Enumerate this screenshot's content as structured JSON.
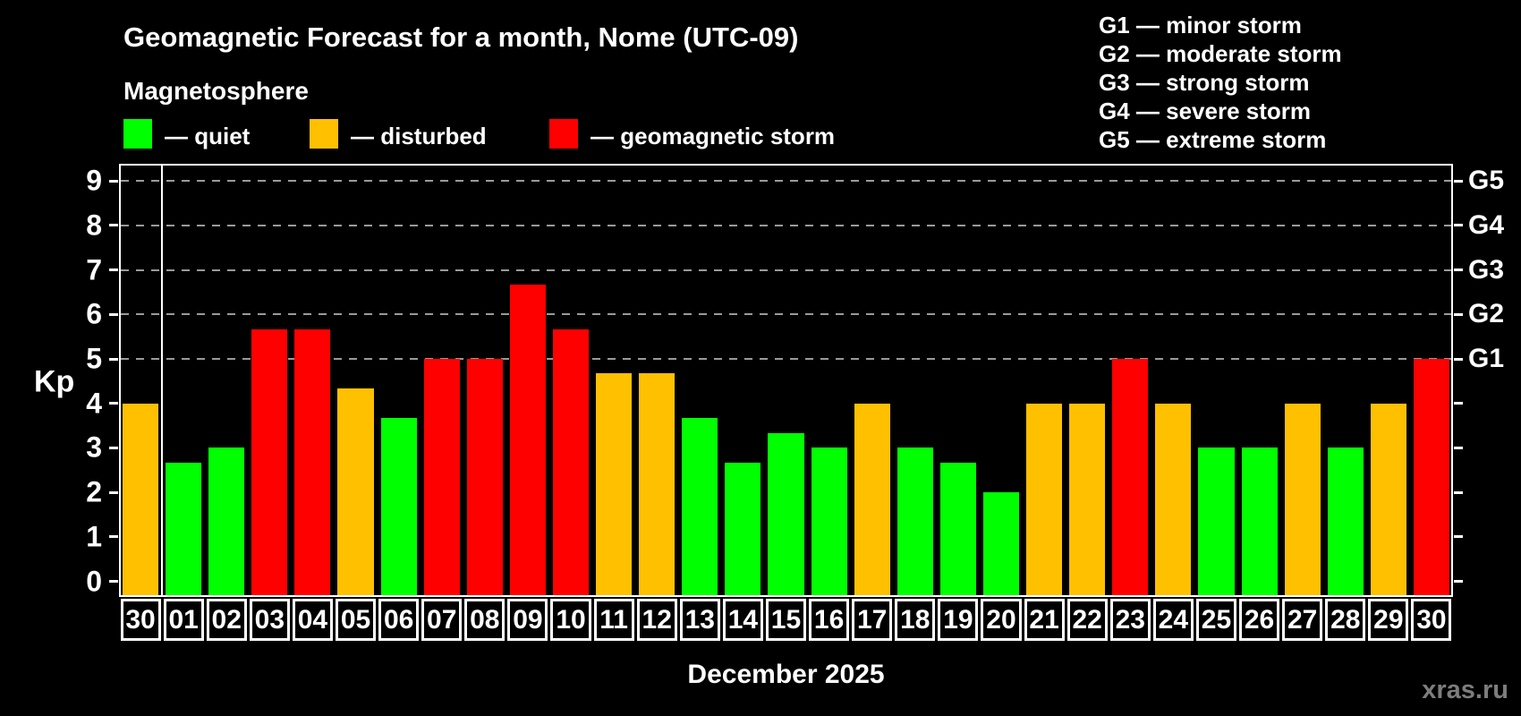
{
  "title": "Geomagnetic Forecast for a month, Nome (UTC-09)",
  "subtitle": "Magnetosphere",
  "legend": [
    {
      "key": "quiet",
      "label": "— quiet",
      "color": "#00FF00"
    },
    {
      "key": "disturbed",
      "label": "— disturbed",
      "color": "#FFC000"
    },
    {
      "key": "storm",
      "label": "— geomagnetic storm",
      "color": "#FF0000"
    }
  ],
  "g_legend": [
    "G1 — minor storm",
    "G2 — moderate storm",
    "G3 — strong storm",
    "G4 — severe storm",
    "G5 — extreme storm"
  ],
  "watermark": "xras.ru",
  "chart_data": {
    "type": "bar",
    "title": "Geomagnetic Forecast for a month, Nome (UTC-09)",
    "xlabel": "December 2025",
    "ylabel": "Kp",
    "ylim": [
      0,
      9
    ],
    "y_ticks": [
      0,
      1,
      2,
      3,
      4,
      5,
      6,
      7,
      8,
      9
    ],
    "gridlines_kp": [
      5,
      6,
      7,
      8,
      9
    ],
    "grid_style": "dashed gray horizontal lines only at G-storm levels Kp 5-9",
    "right_axis_labels": [
      {
        "label": "G1",
        "kp": 5
      },
      {
        "label": "G2",
        "kp": 6
      },
      {
        "label": "G3",
        "kp": 7
      },
      {
        "label": "G4",
        "kp": 8
      },
      {
        "label": "G5",
        "kp": 9
      }
    ],
    "categories": [
      "30",
      "01",
      "02",
      "03",
      "04",
      "05",
      "06",
      "07",
      "08",
      "09",
      "10",
      "11",
      "12",
      "13",
      "14",
      "15",
      "16",
      "17",
      "18",
      "19",
      "20",
      "21",
      "22",
      "23",
      "24",
      "25",
      "26",
      "27",
      "28",
      "29",
      "30"
    ],
    "values": [
      4,
      2.67,
      3,
      5.67,
      5.67,
      4.33,
      3.67,
      5,
      5,
      6.67,
      5.67,
      4.67,
      4.67,
      3.67,
      2.67,
      3.33,
      3,
      4,
      3,
      2.67,
      2,
      4,
      4,
      5,
      4,
      3,
      3,
      4,
      3,
      4,
      5
    ],
    "levels": [
      "disturbed",
      "quiet",
      "quiet",
      "storm",
      "storm",
      "disturbed",
      "quiet",
      "storm",
      "storm",
      "storm",
      "storm",
      "disturbed",
      "disturbed",
      "quiet",
      "quiet",
      "quiet",
      "quiet",
      "disturbed",
      "quiet",
      "quiet",
      "quiet",
      "disturbed",
      "disturbed",
      "storm",
      "disturbed",
      "quiet",
      "quiet",
      "disturbed",
      "quiet",
      "disturbed",
      "storm"
    ],
    "level_colors": {
      "quiet": "#00FF00",
      "disturbed": "#FFC000",
      "storm": "#FF0000"
    },
    "prev_month_separator_after_index": 0,
    "legend_position": "top-left",
    "background": "#000000"
  }
}
